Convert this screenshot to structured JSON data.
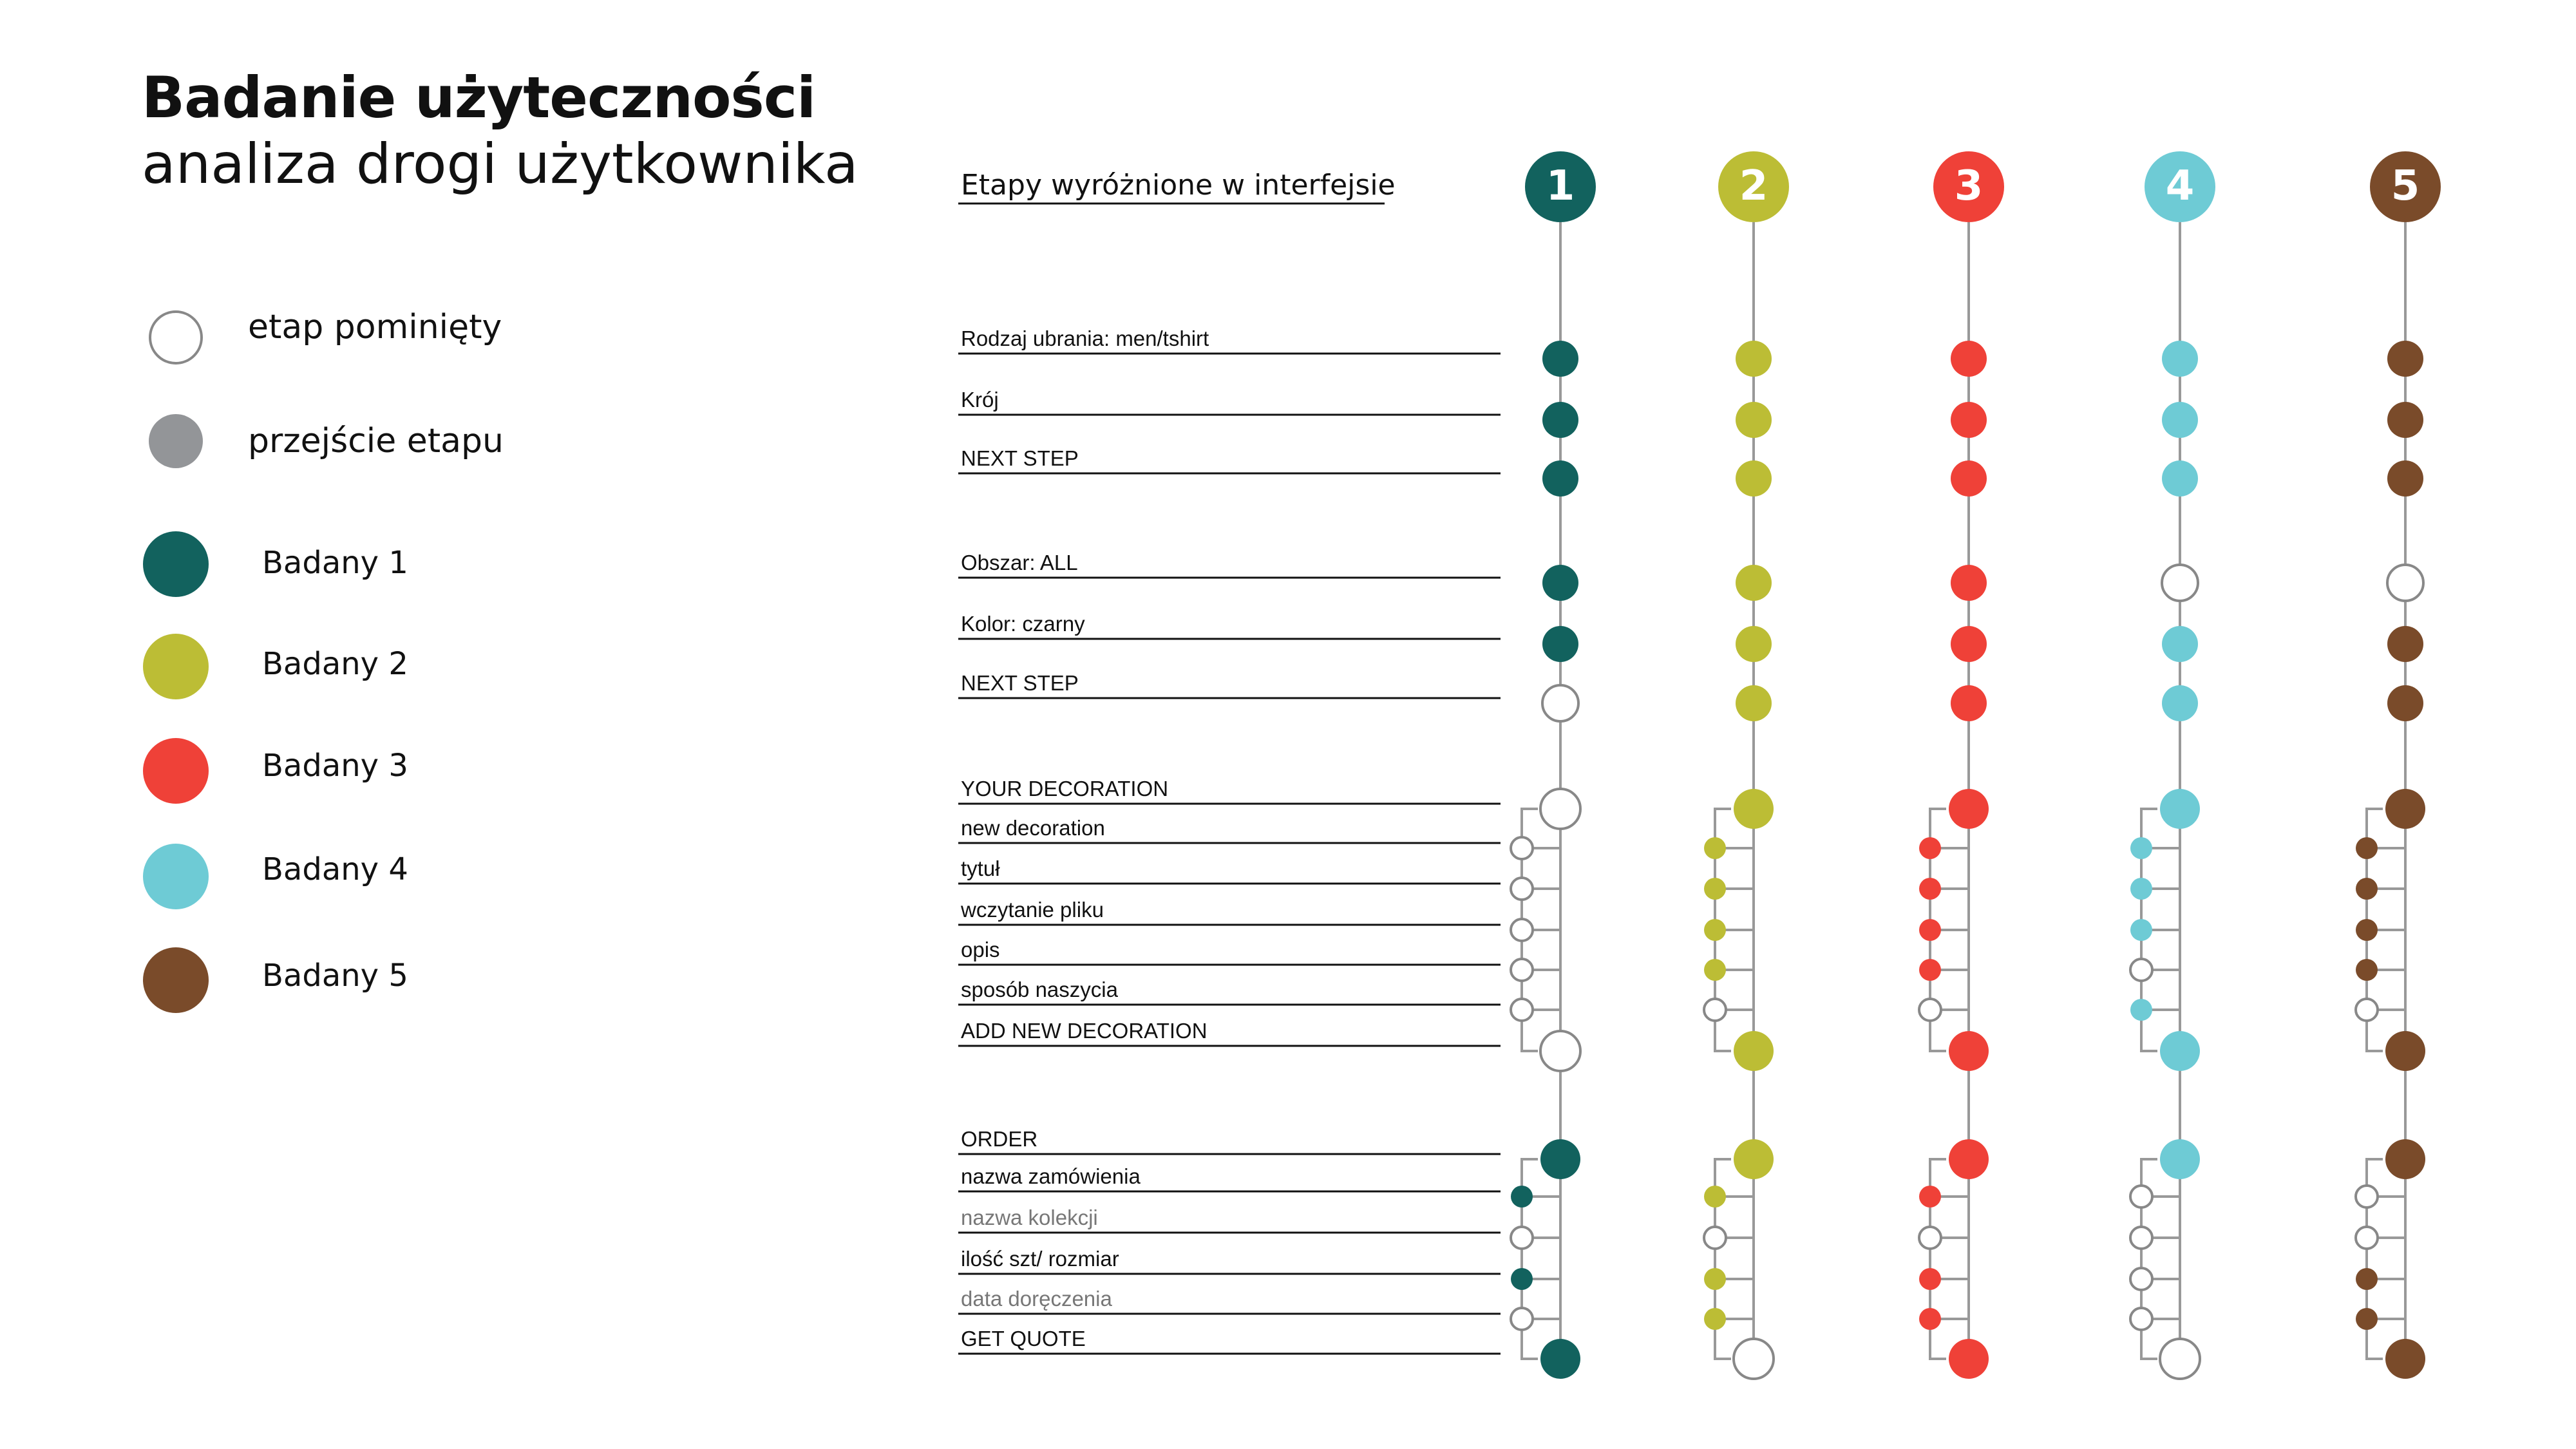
{
  "title": "Badanie użyteczności",
  "subtitle": "analiza drogi użytkownika",
  "legend": {
    "skipped": "etap pominięty",
    "passed": "przejście etapu",
    "participants": [
      "Badany 1",
      "Badany 2",
      "Badany 3",
      "Badany 4",
      "Badany 5"
    ]
  },
  "colors": {
    "skipped_stroke": "#888888",
    "passed": "#939598",
    "line": "#999999",
    "participants": [
      "#12625e",
      "#bcbd35",
      "#ef4138",
      "#6ecbd5",
      "#7a4b2a"
    ]
  },
  "stage_header": "Etapy wyróżnione w interfejsie",
  "participant_numbers": [
    "1",
    "2",
    "3",
    "4",
    "5"
  ],
  "stages": [
    {
      "label": "Rodzaj ubrania: men/tshirt",
      "kind": "main",
      "muted": false
    },
    {
      "label": "Krój",
      "kind": "main",
      "muted": false
    },
    {
      "label": "NEXT STEP",
      "kind": "main",
      "muted": false
    },
    {
      "label": "Obszar: ALL",
      "kind": "main",
      "muted": false
    },
    {
      "label": "Kolor: czarny",
      "kind": "main",
      "muted": false
    },
    {
      "label": "NEXT STEP",
      "kind": "main",
      "muted": false
    },
    {
      "label": "YOUR DECORATION",
      "kind": "main",
      "muted": false
    },
    {
      "label": "new decoration",
      "kind": "sub",
      "muted": false
    },
    {
      "label": "tytuł",
      "kind": "sub",
      "muted": false
    },
    {
      "label": "wczytanie pliku",
      "kind": "sub",
      "muted": false
    },
    {
      "label": "opis",
      "kind": "sub",
      "muted": false
    },
    {
      "label": "sposób naszycia",
      "kind": "sub",
      "muted": false
    },
    {
      "label": "ADD NEW DECORATION",
      "kind": "main",
      "muted": false
    },
    {
      "label": "ORDER",
      "kind": "main",
      "muted": false
    },
    {
      "label": "nazwa zamówienia",
      "kind": "sub",
      "muted": false
    },
    {
      "label": "nazwa kolekcji",
      "kind": "sub",
      "muted": true
    },
    {
      "label": "ilość szt/ rozmiar",
      "kind": "sub",
      "muted": false
    },
    {
      "label": "data doręczenia",
      "kind": "sub",
      "muted": true
    },
    {
      "label": "GET QUOTE",
      "kind": "main",
      "muted": false
    }
  ],
  "results": [
    [
      1,
      1,
      1,
      1,
      1,
      0,
      0,
      0,
      0,
      0,
      0,
      0,
      0,
      1,
      1,
      0,
      1,
      0,
      1
    ],
    [
      1,
      1,
      1,
      1,
      1,
      1,
      1,
      1,
      1,
      1,
      1,
      0,
      1,
      1,
      1,
      0,
      1,
      1,
      0
    ],
    [
      1,
      1,
      1,
      1,
      1,
      1,
      1,
      1,
      1,
      1,
      1,
      0,
      1,
      1,
      1,
      0,
      1,
      1,
      1
    ],
    [
      1,
      1,
      1,
      0,
      1,
      1,
      1,
      1,
      1,
      1,
      0,
      1,
      1,
      1,
      0,
      0,
      0,
      0,
      0
    ],
    [
      1,
      1,
      1,
      0,
      1,
      1,
      1,
      1,
      1,
      1,
      1,
      0,
      1,
      1,
      0,
      0,
      1,
      1,
      1
    ]
  ]
}
